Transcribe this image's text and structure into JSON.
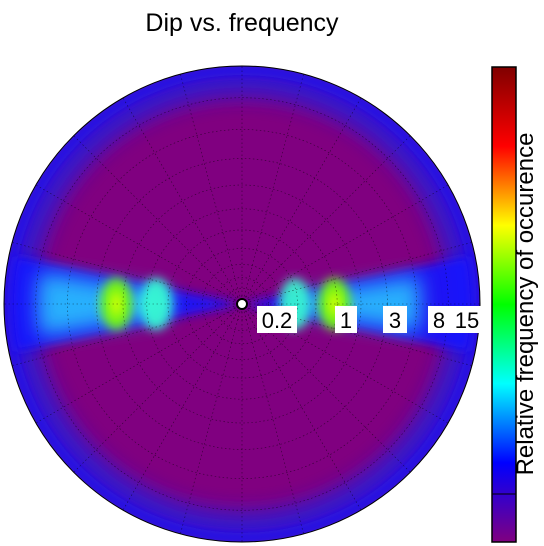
{
  "chart_data": {
    "type": "heatmap",
    "title": "Dip vs. frequency",
    "colorbar_label": "Relative frequency of occurence",
    "radial_tick_labels": [
      "0.2",
      "1",
      "3",
      "8",
      "15"
    ],
    "radial_ticks": [
      0.2,
      1,
      3,
      8,
      15
    ],
    "radial_range": [
      0,
      18
    ],
    "angular_range_deg": [
      0,
      360
    ],
    "grid": true,
    "colormap": [
      "#800080",
      "#0000ff",
      "#00ffff",
      "#00ff00",
      "#ffff00",
      "#ff0000",
      "#800000"
    ],
    "hotspots": [
      {
        "azimuth_deg": 90,
        "radius": 7.0,
        "value": 1.0
      },
      {
        "azimuth_deg": 270,
        "radius": 9.5,
        "value": 0.95
      },
      {
        "azimuth_deg": 90,
        "radius": 4.0,
        "value": 0.55
      },
      {
        "azimuth_deg": 270,
        "radius": 6.5,
        "value": 0.6
      }
    ]
  }
}
